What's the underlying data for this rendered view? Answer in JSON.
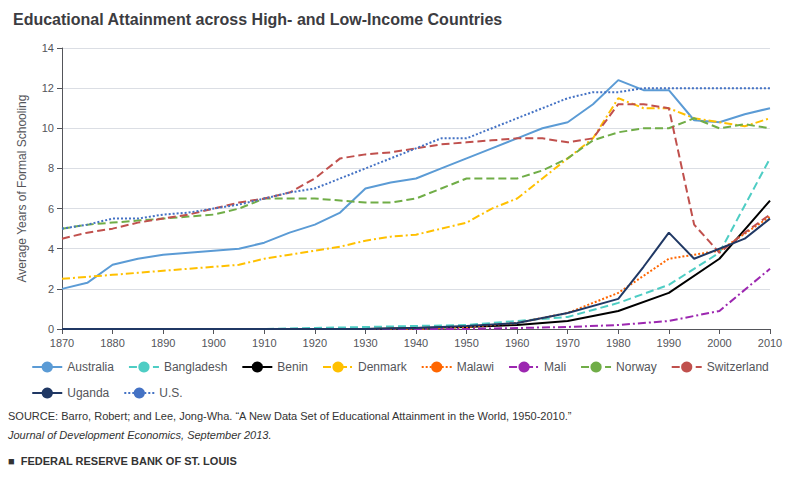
{
  "chart_data": {
    "type": "line",
    "title": "Educational Attainment across High- and Low-Income Countries",
    "ylabel": "Average Years of Formal Schooling",
    "annotations": [
      "SOURCE: Barro, Robert; and Lee, Jong-Wha. “A New Data Set of Educational Attainment in the World, 1950-2010.”",
      "Journal of Development Economics, September 2013.",
      "■  FEDERAL RESERVE BANK OF ST. LOUIS"
    ],
    "xlim": [
      1870,
      2010
    ],
    "xticks": [
      1870,
      1880,
      1890,
      1900,
      1910,
      1920,
      1930,
      1940,
      1950,
      1960,
      1970,
      1980,
      1990,
      2000,
      2010
    ],
    "ylim": [
      0,
      14
    ],
    "yticks": [
      0,
      2,
      4,
      6,
      8,
      10,
      12,
      14
    ],
    "grid": "y",
    "marker": "none",
    "series": [
      {
        "name": "Australia",
        "color": "#5B9BD5",
        "line_style": "solid",
        "x": [
          1870,
          1875,
          1880,
          1885,
          1890,
          1895,
          1900,
          1905,
          1910,
          1915,
          1920,
          1925,
          1930,
          1935,
          1940,
          1945,
          1950,
          1955,
          1960,
          1965,
          1970,
          1975,
          1980,
          1985,
          1990,
          1995,
          2000,
          2005,
          2010
        ],
        "values": [
          2.0,
          2.3,
          3.2,
          3.5,
          3.7,
          3.8,
          3.9,
          4.0,
          4.3,
          4.8,
          5.2,
          5.8,
          7.0,
          7.3,
          7.5,
          8.0,
          8.5,
          9.0,
          9.5,
          10.0,
          10.3,
          11.2,
          12.4,
          11.9,
          11.9,
          10.4,
          10.3,
          10.7,
          11.0
        ]
      },
      {
        "name": "Bangladesh",
        "color": "#4ECDC4",
        "line_style": "dashed",
        "x": [
          1870,
          1880,
          1890,
          1900,
          1910,
          1920,
          1930,
          1940,
          1950,
          1960,
          1970,
          1980,
          1990,
          2000,
          2010
        ],
        "values": [
          0.0,
          0.0,
          0.0,
          0.0,
          0.0,
          0.05,
          0.1,
          0.15,
          0.2,
          0.4,
          0.6,
          1.3,
          2.2,
          3.8,
          8.5
        ]
      },
      {
        "name": "Benin",
        "color": "#000000",
        "line_style": "solid",
        "x": [
          1870,
          1880,
          1890,
          1900,
          1910,
          1920,
          1930,
          1940,
          1950,
          1960,
          1970,
          1980,
          1990,
          2000,
          2010
        ],
        "values": [
          0.0,
          0.0,
          0.0,
          0.0,
          0.0,
          0.0,
          0.0,
          0.05,
          0.1,
          0.2,
          0.4,
          0.9,
          1.8,
          3.5,
          6.4
        ]
      },
      {
        "name": "Denmark",
        "color": "#FFC000",
        "line_style": "dashdot",
        "x": [
          1870,
          1875,
          1880,
          1885,
          1890,
          1895,
          1900,
          1905,
          1910,
          1915,
          1920,
          1925,
          1930,
          1935,
          1940,
          1945,
          1950,
          1955,
          1960,
          1965,
          1970,
          1975,
          1980,
          1985,
          1990,
          1995,
          2000,
          2005,
          2010
        ],
        "values": [
          2.5,
          2.6,
          2.7,
          2.8,
          2.9,
          3.0,
          3.1,
          3.2,
          3.5,
          3.7,
          3.9,
          4.1,
          4.4,
          4.6,
          4.7,
          5.0,
          5.3,
          6.0,
          6.5,
          7.5,
          8.5,
          9.5,
          11.5,
          11.0,
          11.0,
          10.5,
          10.3,
          10.1,
          10.5
        ]
      },
      {
        "name": "Malawi",
        "color": "#FF6600",
        "line_style": "dotted",
        "x": [
          1870,
          1880,
          1890,
          1900,
          1910,
          1920,
          1930,
          1940,
          1950,
          1960,
          1970,
          1980,
          1990,
          2000,
          2010
        ],
        "values": [
          0.0,
          0.0,
          0.0,
          0.0,
          0.0,
          0.0,
          0.0,
          0.0,
          0.1,
          0.3,
          0.8,
          1.8,
          3.5,
          3.9,
          5.6
        ]
      },
      {
        "name": "Mali",
        "color": "#9C27B0",
        "line_style": "dashdot",
        "x": [
          1870,
          1880,
          1890,
          1900,
          1910,
          1920,
          1930,
          1940,
          1950,
          1960,
          1970,
          1980,
          1990,
          2000,
          2010
        ],
        "values": [
          0.0,
          0.0,
          0.0,
          0.0,
          0.0,
          0.0,
          0.0,
          0.0,
          0.0,
          0.05,
          0.1,
          0.2,
          0.4,
          0.9,
          3.0
        ]
      },
      {
        "name": "Norway",
        "color": "#70AD47",
        "line_style": "dashed",
        "x": [
          1870,
          1875,
          1880,
          1885,
          1890,
          1895,
          1900,
          1905,
          1910,
          1915,
          1920,
          1925,
          1930,
          1935,
          1940,
          1945,
          1950,
          1955,
          1960,
          1965,
          1970,
          1975,
          1980,
          1985,
          1990,
          1995,
          2000,
          2005,
          2010
        ],
        "values": [
          5.0,
          5.2,
          5.3,
          5.4,
          5.5,
          5.6,
          5.7,
          6.0,
          6.5,
          6.5,
          6.5,
          6.4,
          6.3,
          6.3,
          6.5,
          7.0,
          7.5,
          7.5,
          7.5,
          7.9,
          8.5,
          9.4,
          9.8,
          10.0,
          10.0,
          10.5,
          10.0,
          10.2,
          10.0
        ]
      },
      {
        "name": "Switzerland",
        "color": "#C0504D",
        "line_style": "dashed",
        "x": [
          1870,
          1875,
          1880,
          1885,
          1890,
          1895,
          1900,
          1905,
          1910,
          1915,
          1920,
          1925,
          1930,
          1935,
          1940,
          1945,
          1950,
          1955,
          1960,
          1965,
          1970,
          1975,
          1980,
          1985,
          1990,
          1995,
          2000,
          2005,
          2010
        ],
        "values": [
          4.5,
          4.8,
          5.0,
          5.3,
          5.5,
          5.7,
          6.0,
          6.3,
          6.5,
          6.8,
          7.5,
          8.5,
          8.7,
          8.8,
          9.0,
          9.2,
          9.3,
          9.4,
          9.5,
          9.5,
          9.3,
          9.5,
          11.2,
          11.2,
          11.0,
          5.2,
          3.8,
          4.8,
          5.7
        ]
      },
      {
        "name": "Uganda",
        "color": "#203864",
        "line_style": "solid",
        "x": [
          1870,
          1880,
          1890,
          1900,
          1910,
          1920,
          1930,
          1940,
          1950,
          1960,
          1970,
          1980,
          1985,
          1990,
          1995,
          2000,
          2005,
          2010
        ],
        "values": [
          0.0,
          0.0,
          0.0,
          0.0,
          0.0,
          0.0,
          0.0,
          0.05,
          0.15,
          0.3,
          0.8,
          1.5,
          3.1,
          4.8,
          3.5,
          4.0,
          4.5,
          5.5
        ]
      },
      {
        "name": "U.S.",
        "color": "#4472C4",
        "line_style": "dotted",
        "x": [
          1870,
          1875,
          1880,
          1885,
          1890,
          1895,
          1900,
          1905,
          1910,
          1915,
          1920,
          1925,
          1930,
          1935,
          1940,
          1945,
          1950,
          1955,
          1960,
          1965,
          1970,
          1975,
          1980,
          1985,
          1990,
          1995,
          2000,
          2005,
          2010
        ],
        "values": [
          5.0,
          5.2,
          5.5,
          5.5,
          5.7,
          5.8,
          6.0,
          6.2,
          6.5,
          6.8,
          7.0,
          7.5,
          8.0,
          8.5,
          9.0,
          9.5,
          9.5,
          10.0,
          10.5,
          11.0,
          11.5,
          11.8,
          11.8,
          12.0,
          12.0,
          12.0,
          12.0,
          12.0,
          12.0
        ]
      }
    ]
  }
}
